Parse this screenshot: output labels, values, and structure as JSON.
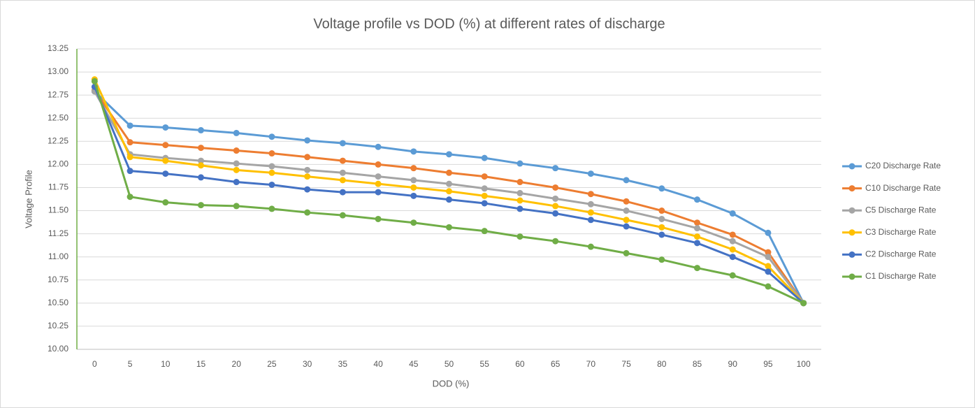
{
  "chart_data": {
    "type": "line",
    "title": "Voltage profile vs DOD (%) at different rates of discharge",
    "x_label": "DOD (%)",
    "y_label": "Voltage Profile",
    "categories": [
      0,
      5,
      10,
      15,
      20,
      25,
      30,
      35,
      40,
      45,
      50,
      55,
      60,
      65,
      70,
      75,
      80,
      85,
      90,
      95,
      100
    ],
    "ylim": [
      10,
      13.25
    ],
    "yticks": [
      {
        "value": 10,
        "label": "10.00"
      },
      {
        "value": 10.25,
        "label": "10.25"
      },
      {
        "value": 10.5,
        "label": "10.50"
      },
      {
        "value": 10.75,
        "label": "10.75"
      },
      {
        "value": 11,
        "label": "11.00"
      },
      {
        "value": 11.25,
        "label": "11.25"
      },
      {
        "value": 11.5,
        "label": "11.50"
      },
      {
        "value": 11.75,
        "label": "11.75"
      },
      {
        "value": 12,
        "label": "12.00"
      },
      {
        "value": 12.25,
        "label": "12.25"
      },
      {
        "value": 12.5,
        "label": "12.50"
      },
      {
        "value": 12.75,
        "label": "12.75"
      },
      {
        "value": 13,
        "label": "13.00"
      },
      {
        "value": 13.25,
        "label": "13.25"
      }
    ],
    "grid": true,
    "legend": "right",
    "series": [
      {
        "name": "C20 Discharge Rate",
        "color": "#5b9bd5",
        "values": [
          12.79,
          12.42,
          12.4,
          12.37,
          12.34,
          12.3,
          12.26,
          12.23,
          12.19,
          12.14,
          12.11,
          12.07,
          12.01,
          11.96,
          11.9,
          11.83,
          11.74,
          11.62,
          11.47,
          11.26,
          10.5
        ]
      },
      {
        "name": "C10 Discharge Rate",
        "color": "#ed7d31",
        "values": [
          12.8,
          12.24,
          12.21,
          12.18,
          12.15,
          12.12,
          12.08,
          12.04,
          12.0,
          11.96,
          11.91,
          11.87,
          11.81,
          11.75,
          11.68,
          11.6,
          11.5,
          11.37,
          11.24,
          11.05,
          10.5
        ]
      },
      {
        "name": "C5 Discharge Rate",
        "color": "#a5a5a5",
        "values": [
          12.79,
          12.11,
          12.07,
          12.04,
          12.01,
          11.98,
          11.94,
          11.91,
          11.87,
          11.83,
          11.79,
          11.74,
          11.69,
          11.63,
          11.57,
          11.5,
          11.41,
          11.31,
          11.17,
          11.0,
          10.5
        ]
      },
      {
        "name": "C3 Discharge Rate",
        "color": "#ffc000",
        "values": [
          12.92,
          12.08,
          12.04,
          11.99,
          11.94,
          11.91,
          11.87,
          11.83,
          11.79,
          11.75,
          11.71,
          11.66,
          11.61,
          11.55,
          11.48,
          11.4,
          11.32,
          11.22,
          11.08,
          10.9,
          10.5
        ]
      },
      {
        "name": "C2 Discharge Rate",
        "color": "#4472c4",
        "values": [
          12.84,
          11.93,
          11.9,
          11.86,
          11.81,
          11.78,
          11.73,
          11.7,
          11.7,
          11.66,
          11.62,
          11.58,
          11.52,
          11.47,
          11.4,
          11.33,
          11.24,
          11.15,
          11.0,
          10.84,
          10.5
        ]
      },
      {
        "name": "C1 Discharge Rate",
        "color": "#70ad47",
        "values": [
          12.9,
          11.65,
          11.59,
          11.56,
          11.55,
          11.52,
          11.48,
          11.45,
          11.41,
          11.37,
          11.32,
          11.28,
          11.22,
          11.17,
          11.11,
          11.04,
          10.97,
          10.88,
          10.8,
          10.68,
          10.5
        ]
      }
    ]
  }
}
